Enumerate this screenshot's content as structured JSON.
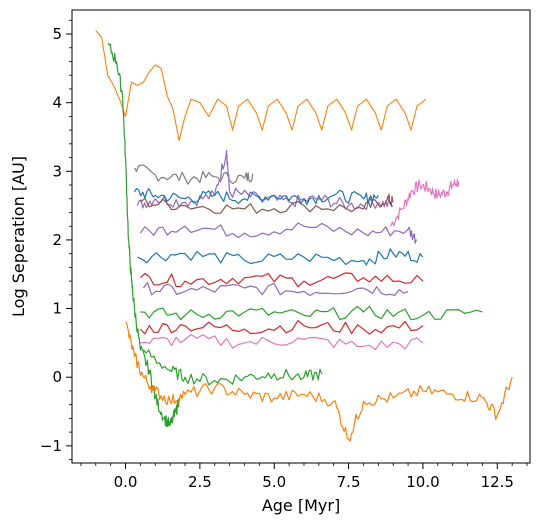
{
  "chart_data": {
    "type": "line",
    "title": "",
    "xlabel": "Age [Myr]",
    "ylabel": "Log Seperation [AU]",
    "xlim": [
      -1.8,
      13.6
    ],
    "ylim": [
      -1.25,
      5.35
    ],
    "xticks": [
      0.0,
      2.5,
      5.0,
      7.5,
      10.0,
      12.5
    ],
    "xtick_labels": [
      "0.0",
      "2.5",
      "5.0",
      "7.5",
      "10.0",
      "12.5"
    ],
    "yticks": [
      -1,
      0,
      1,
      2,
      3,
      4,
      5
    ],
    "ytick_labels": [
      "−1",
      "0",
      "1",
      "2",
      "3",
      "4",
      "5"
    ],
    "minor_ticks": true,
    "grid": false,
    "legend": "none",
    "series": [
      {
        "color": "#ff7f0e",
        "points": [
          [
            -1.0,
            5.05
          ],
          [
            -0.8,
            4.95
          ],
          [
            -0.6,
            4.4
          ],
          [
            -0.4,
            4.25
          ],
          [
            -0.2,
            4.05
          ],
          [
            0.0,
            3.8
          ],
          [
            0.2,
            4.3
          ],
          [
            0.4,
            4.25
          ],
          [
            0.6,
            4.3
          ],
          [
            0.8,
            4.45
          ],
          [
            1.0,
            4.55
          ],
          [
            1.2,
            4.5
          ],
          [
            1.4,
            4.1
          ],
          [
            1.6,
            3.9
          ],
          [
            1.8,
            3.45
          ],
          [
            2.0,
            3.8
          ],
          [
            2.2,
            4.05
          ],
          [
            2.5,
            4.0
          ],
          [
            2.8,
            3.8
          ],
          [
            3.1,
            4.05
          ],
          [
            3.4,
            3.95
          ],
          [
            3.6,
            3.6
          ],
          [
            3.8,
            3.95
          ],
          [
            4.1,
            4.05
          ],
          [
            4.4,
            3.85
          ],
          [
            4.6,
            3.6
          ],
          [
            4.8,
            3.95
          ],
          [
            5.1,
            4.05
          ],
          [
            5.4,
            3.85
          ],
          [
            5.6,
            3.6
          ],
          [
            5.8,
            3.95
          ],
          [
            6.1,
            4.05
          ],
          [
            6.4,
            3.85
          ],
          [
            6.6,
            3.6
          ],
          [
            6.8,
            3.95
          ],
          [
            7.1,
            4.05
          ],
          [
            7.4,
            3.85
          ],
          [
            7.6,
            3.6
          ],
          [
            7.8,
            3.95
          ],
          [
            8.1,
            4.05
          ],
          [
            8.4,
            3.85
          ],
          [
            8.6,
            3.6
          ],
          [
            8.8,
            3.95
          ],
          [
            9.1,
            4.05
          ],
          [
            9.4,
            3.85
          ],
          [
            9.6,
            3.6
          ],
          [
            9.8,
            3.95
          ],
          [
            10.1,
            4.05
          ]
        ]
      },
      {
        "color": "#e377c2",
        "points": [
          [
            8.9,
            2.2
          ],
          [
            9.3,
            2.45
          ],
          [
            9.6,
            2.7
          ],
          [
            9.9,
            2.8
          ],
          [
            10.2,
            2.75
          ],
          [
            10.5,
            2.65
          ],
          [
            10.8,
            2.7
          ],
          [
            11.0,
            2.8
          ],
          [
            11.2,
            2.85
          ]
        ]
      },
      {
        "color": "#7f7f7f",
        "points": [
          [
            0.3,
            3.05
          ],
          [
            1.0,
            2.95
          ],
          [
            2.0,
            2.9
          ],
          [
            3.0,
            2.92
          ],
          [
            4.0,
            2.9
          ],
          [
            4.3,
            2.95
          ]
        ]
      },
      {
        "color": "#9467bd",
        "points": [
          [
            0.4,
            2.5
          ],
          [
            1.0,
            2.6
          ],
          [
            2.0,
            2.55
          ],
          [
            3.0,
            2.65
          ],
          [
            3.4,
            3.3
          ],
          [
            3.5,
            2.7
          ],
          [
            4.5,
            2.6
          ],
          [
            5.5,
            2.55
          ],
          [
            6.5,
            2.6
          ],
          [
            7.5,
            2.5
          ],
          [
            8.5,
            2.55
          ],
          [
            9.0,
            2.5
          ]
        ]
      },
      {
        "color": "#8c564b",
        "points": [
          [
            0.5,
            2.55
          ],
          [
            2.0,
            2.5
          ],
          [
            4.0,
            2.45
          ],
          [
            6.0,
            2.5
          ],
          [
            8.0,
            2.45
          ],
          [
            8.8,
            2.6
          ],
          [
            9.0,
            2.55
          ]
        ]
      },
      {
        "color": "#1f77b4",
        "points": [
          [
            0.3,
            2.7
          ],
          [
            1.0,
            2.65
          ],
          [
            2.0,
            2.6
          ],
          [
            3.0,
            2.65
          ],
          [
            4.0,
            2.6
          ],
          [
            5.0,
            2.65
          ],
          [
            6.0,
            2.6
          ],
          [
            7.0,
            2.65
          ],
          [
            8.0,
            2.6
          ],
          [
            8.5,
            2.65
          ]
        ]
      },
      {
        "color": "#9467bd",
        "points": [
          [
            0.5,
            2.1
          ],
          [
            2.0,
            2.2
          ],
          [
            4.0,
            2.1
          ],
          [
            6.0,
            2.2
          ],
          [
            8.0,
            2.1
          ],
          [
            9.5,
            2.15
          ],
          [
            9.8,
            2.0
          ]
        ]
      },
      {
        "color": "#1f77b4",
        "points": [
          [
            0.4,
            1.75
          ],
          [
            2.0,
            1.8
          ],
          [
            4.0,
            1.7
          ],
          [
            6.0,
            1.75
          ],
          [
            8.0,
            1.7
          ],
          [
            9.0,
            1.8
          ],
          [
            10.0,
            1.75
          ]
        ]
      },
      {
        "color": "#d62728",
        "points": [
          [
            0.5,
            1.45
          ],
          [
            2.0,
            1.4
          ],
          [
            4.0,
            1.45
          ],
          [
            6.0,
            1.4
          ],
          [
            8.0,
            1.45
          ],
          [
            10.0,
            1.4
          ]
        ]
      },
      {
        "color": "#9467bd",
        "points": [
          [
            0.6,
            1.3
          ],
          [
            2.0,
            1.25
          ],
          [
            4.0,
            1.3
          ],
          [
            6.0,
            1.25
          ],
          [
            8.0,
            1.3
          ],
          [
            9.5,
            1.25
          ]
        ]
      },
      {
        "color": "#2ca02c",
        "points": [
          [
            0.5,
            0.95
          ],
          [
            2.0,
            0.9
          ],
          [
            4.0,
            0.95
          ],
          [
            6.0,
            0.9
          ],
          [
            8.0,
            0.95
          ],
          [
            10.0,
            0.9
          ],
          [
            12.0,
            0.95
          ]
        ]
      },
      {
        "color": "#d62728",
        "points": [
          [
            0.5,
            0.7
          ],
          [
            2.0,
            0.75
          ],
          [
            4.0,
            0.7
          ],
          [
            6.0,
            0.75
          ],
          [
            8.0,
            0.7
          ],
          [
            10.0,
            0.75
          ]
        ]
      },
      {
        "color": "#e377c2",
        "points": [
          [
            0.5,
            0.5
          ],
          [
            2.0,
            0.55
          ],
          [
            4.0,
            0.5
          ],
          [
            6.0,
            0.55
          ],
          [
            8.0,
            0.45
          ],
          [
            10.0,
            0.5
          ]
        ]
      },
      {
        "color": "#2ca02c",
        "points": [
          [
            0.6,
            0.4
          ],
          [
            1.5,
            0.1
          ],
          [
            2.0,
            0.0
          ],
          [
            3.0,
            -0.05
          ],
          [
            4.0,
            0.0
          ],
          [
            5.0,
            0.05
          ],
          [
            6.0,
            0.0
          ],
          [
            6.6,
            0.05
          ]
        ]
      },
      {
        "color": "#2ca02c",
        "points": [
          [
            -0.6,
            4.85
          ],
          [
            -0.3,
            4.6
          ],
          [
            -0.1,
            4.1
          ],
          [
            0.0,
            3.2
          ],
          [
            0.1,
            2.0
          ],
          [
            0.2,
            1.4
          ],
          [
            0.3,
            1.0
          ],
          [
            0.5,
            0.4
          ],
          [
            0.8,
            0.1
          ],
          [
            1.0,
            -0.3
          ],
          [
            1.3,
            -0.6
          ],
          [
            1.5,
            -0.7
          ],
          [
            1.7,
            -0.5
          ],
          [
            1.8,
            -0.3
          ]
        ]
      },
      {
        "color": "#ff7f0e",
        "points": [
          [
            0.0,
            0.8
          ],
          [
            0.3,
            0.3
          ],
          [
            0.6,
            0.0
          ],
          [
            1.0,
            -0.2
          ],
          [
            1.5,
            -0.35
          ],
          [
            2.0,
            -0.25
          ],
          [
            3.0,
            -0.15
          ],
          [
            4.0,
            -0.25
          ],
          [
            5.0,
            -0.3
          ],
          [
            6.0,
            -0.25
          ],
          [
            7.0,
            -0.35
          ],
          [
            7.5,
            -0.9
          ],
          [
            8.0,
            -0.35
          ],
          [
            9.0,
            -0.3
          ],
          [
            10.0,
            -0.2
          ],
          [
            11.0,
            -0.25
          ],
          [
            12.0,
            -0.3
          ],
          [
            12.5,
            -0.55
          ],
          [
            13.0,
            0.0
          ]
        ]
      }
    ]
  }
}
